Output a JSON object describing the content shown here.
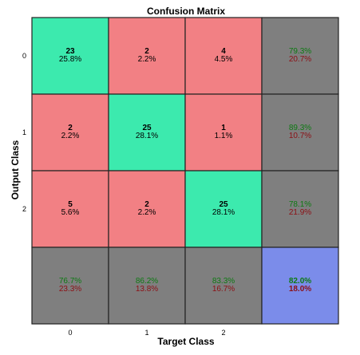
{
  "chart_data": {
    "type": "heatmap",
    "title": "Confusion Matrix",
    "xlabel": "Target Class",
    "ylabel": "Output Class",
    "x_ticks": [
      "0",
      "1",
      "2"
    ],
    "y_ticks": [
      "0",
      "1",
      "2"
    ],
    "matrix": [
      [
        {
          "count": "23",
          "pct": "25.8%"
        },
        {
          "count": "2",
          "pct": "2.2%"
        },
        {
          "count": "4",
          "pct": "4.5%"
        }
      ],
      [
        {
          "count": "2",
          "pct": "2.2%"
        },
        {
          "count": "25",
          "pct": "28.1%"
        },
        {
          "count": "1",
          "pct": "1.1%"
        }
      ],
      [
        {
          "count": "5",
          "pct": "5.6%"
        },
        {
          "count": "2",
          "pct": "2.2%"
        },
        {
          "count": "25",
          "pct": "28.1%"
        }
      ]
    ],
    "row_summary": [
      {
        "correct": "79.3%",
        "wrong": "20.7%"
      },
      {
        "correct": "89.3%",
        "wrong": "10.7%"
      },
      {
        "correct": "78.1%",
        "wrong": "21.9%"
      }
    ],
    "col_summary": [
      {
        "correct": "76.7%",
        "wrong": "23.3%"
      },
      {
        "correct": "86.2%",
        "wrong": "13.8%"
      },
      {
        "correct": "83.3%",
        "wrong": "16.7%"
      }
    ],
    "overall": {
      "correct": "82.0%",
      "wrong": "18.0%"
    },
    "colors": {
      "diagonal": "#3ceaae",
      "off_diagonal": "#f28084",
      "summary": "#7f7f7f",
      "overall": "#7b8cea",
      "correct_text": "#0d7a12",
      "wrong_text": "#8c0f14",
      "border": "#222222"
    }
  }
}
